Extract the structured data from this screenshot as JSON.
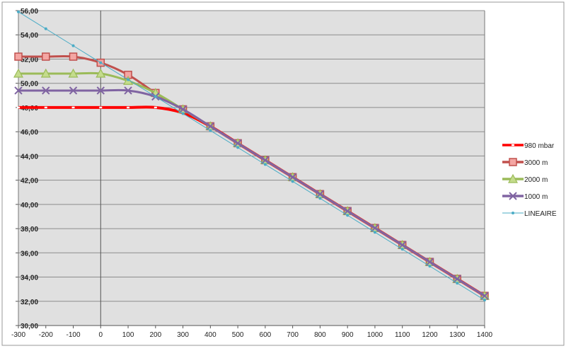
{
  "chart_data": {
    "type": "line",
    "title": "",
    "xlabel": "",
    "ylabel": "",
    "xlim": [
      -300,
      1400
    ],
    "ylim": [
      30,
      56
    ],
    "x_ticks": [
      "-300",
      "-200",
      "-100",
      "0",
      "100",
      "200",
      "300",
      "400",
      "500",
      "600",
      "700",
      "800",
      "900",
      "1000",
      "1100",
      "1200",
      "1300",
      "1400"
    ],
    "y_ticks": [
      "30,00",
      "32,00",
      "34,00",
      "36,00",
      "38,00",
      "40,00",
      "42,00",
      "44,00",
      "46,00",
      "48,00",
      "50,00",
      "52,00",
      "54,00",
      "56,00"
    ],
    "grid": "horizontal",
    "legend_position": "right",
    "plot_background": "#e0e0e0",
    "x": [
      -300,
      -200,
      -100,
      0,
      100,
      200,
      300,
      400,
      500,
      600,
      700,
      800,
      900,
      1000,
      1100,
      1200,
      1300,
      1400
    ],
    "series": [
      {
        "name": "980 mbar",
        "color": "#ff0000",
        "marker": "square",
        "values": [
          48.0,
          48.0,
          48.0,
          48.0,
          48.0,
          48.0,
          47.55,
          46.45,
          45.05,
          43.65,
          42.25,
          40.85,
          39.45,
          38.05,
          36.65,
          35.25,
          33.85,
          32.45
        ]
      },
      {
        "name": "3000 m",
        "color": "#c0504d",
        "marker": "square",
        "values": [
          52.2,
          52.2,
          52.2,
          51.7,
          50.7,
          49.2,
          47.85,
          46.45,
          45.05,
          43.65,
          42.25,
          40.85,
          39.45,
          38.05,
          36.65,
          35.25,
          33.85,
          32.45
        ]
      },
      {
        "name": "2000 m",
        "color": "#9bbb59",
        "marker": "triangle",
        "values": [
          50.8,
          50.8,
          50.8,
          50.8,
          50.2,
          49.2,
          47.85,
          46.45,
          45.05,
          43.65,
          42.25,
          40.85,
          39.45,
          38.05,
          36.65,
          35.25,
          33.85,
          32.45
        ]
      },
      {
        "name": "1000 m",
        "color": "#8064a2",
        "marker": "x",
        "values": [
          49.4,
          49.4,
          49.4,
          49.4,
          49.4,
          48.9,
          47.85,
          46.45,
          45.05,
          43.65,
          42.25,
          40.85,
          39.45,
          38.05,
          36.65,
          35.25,
          33.85,
          32.45
        ]
      },
      {
        "name": "LINEAIRE",
        "color": "#4bacc6",
        "marker": "dot",
        "values": [
          55.9,
          54.5,
          53.1,
          51.7,
          50.3,
          48.9,
          47.5,
          46.1,
          44.7,
          43.3,
          41.9,
          40.5,
          39.1,
          37.7,
          36.3,
          34.9,
          33.5,
          32.1
        ]
      }
    ]
  }
}
